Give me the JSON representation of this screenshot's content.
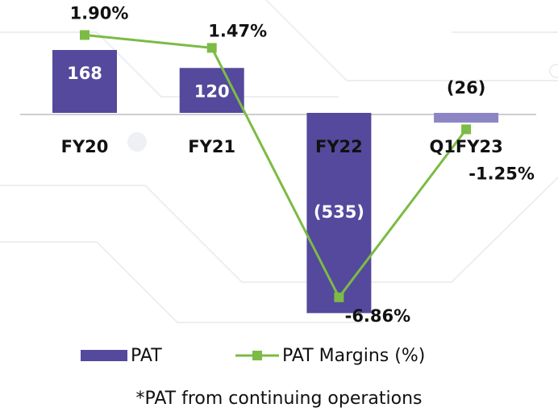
{
  "chart_data": {
    "type": "bar",
    "categories": [
      "FY20",
      "FY21",
      "FY22",
      "Q1FY23"
    ],
    "series": [
      {
        "name": "PAT",
        "type": "bar",
        "color": "#54499c",
        "colors": [
          "#54499c",
          "#54499c",
          "#54499c",
          "#8c85c4"
        ],
        "values": [
          168,
          120,
          -535,
          -26
        ],
        "value_labels": [
          "168",
          "120",
          "(535)",
          "(26)"
        ]
      },
      {
        "name": "PAT Margins (%)",
        "type": "line",
        "axis": "y2",
        "color": "#7cbb45",
        "values": [
          1.9,
          1.47,
          -6.86,
          -1.25
        ],
        "value_labels": [
          "1.90%",
          "1.47%",
          "-6.86%",
          "-1.25%"
        ]
      }
    ],
    "ylim": [
      -560,
      280
    ],
    "y2lim": [
      -7.7,
      2.8
    ],
    "grid": false,
    "legend": "bottom",
    "footnote": "*PAT from continuing operations"
  }
}
